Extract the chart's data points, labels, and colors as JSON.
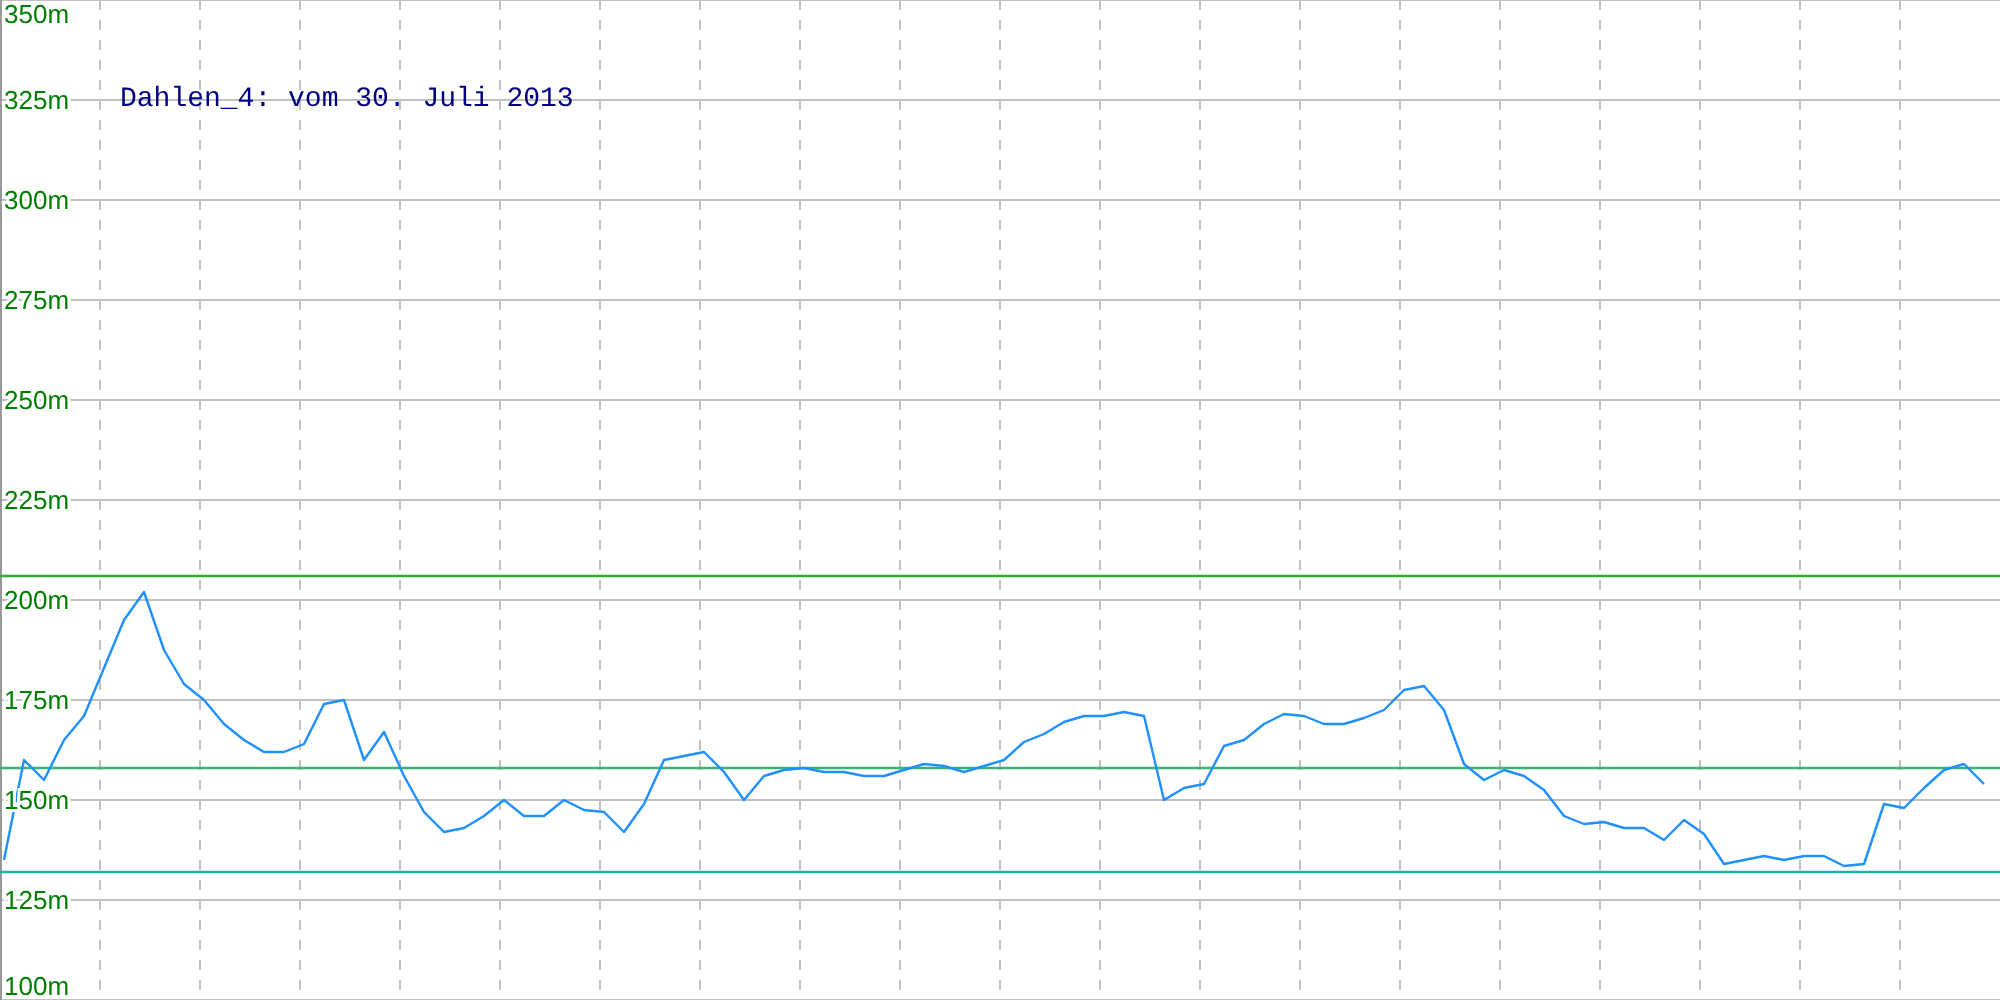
{
  "chart_data": {
    "type": "line",
    "title": "Dahlen_4: vom 30. Juli 2013",
    "categories": [
      null,
      null,
      null,
      null,
      null,
      null,
      null,
      null,
      null,
      null,
      null,
      null,
      null,
      null,
      null,
      null,
      null,
      null,
      null,
      null,
      null,
      null,
      null,
      null,
      null,
      null,
      null,
      null,
      null,
      null,
      null,
      null,
      null,
      null,
      null,
      null,
      null,
      null,
      null,
      null,
      null,
      null,
      null,
      null,
      null,
      null,
      null,
      null,
      null,
      null,
      null,
      null,
      null,
      null,
      null,
      null,
      null,
      null,
      null,
      null,
      null,
      null,
      null,
      null,
      null,
      null,
      null,
      null,
      null,
      null,
      null,
      null,
      null,
      null,
      null,
      null,
      null,
      null,
      null,
      null,
      null,
      null,
      null,
      null,
      null,
      null,
      null,
      null,
      null,
      null,
      null,
      null,
      null,
      null,
      null,
      null,
      null,
      null,
      null,
      null
    ],
    "series": [
      {
        "color": "#1e90ff",
        "values": [
          135,
          160,
          155,
          165,
          171,
          183,
          195,
          202,
          187.5,
          179,
          175,
          169,
          165,
          162,
          162,
          164,
          174,
          175,
          160,
          167,
          156,
          147,
          142,
          143,
          146,
          150,
          146,
          146,
          150,
          147.5,
          147,
          142,
          149,
          160,
          161,
          162,
          157,
          150,
          156,
          157.5,
          158,
          157,
          157,
          156,
          156,
          157.5,
          159,
          158.5,
          157,
          158.5,
          160,
          164.5,
          166.5,
          169.5,
          171,
          171,
          172,
          171,
          150,
          153,
          154,
          163.5,
          165,
          169,
          171.5,
          171,
          169,
          169,
          170.5,
          172.5,
          177.5,
          178.5,
          172.5,
          159,
          155,
          157.5,
          156,
          152.5,
          146,
          144,
          144.5,
          143,
          143,
          140,
          145,
          141.5,
          134,
          135,
          136,
          135,
          136,
          136,
          133.5,
          134,
          149,
          148,
          153,
          157.5,
          159,
          154
        ]
      }
    ],
    "ylim": [
      100,
      350
    ],
    "yticks": [
      {
        "value": 100,
        "label": "100m"
      },
      {
        "value": 125,
        "label": "125m"
      },
      {
        "value": 150,
        "label": "150m"
      },
      {
        "value": 175,
        "label": "175m"
      },
      {
        "value": 200,
        "label": "200m"
      },
      {
        "value": 225,
        "label": "225m"
      },
      {
        "value": 250,
        "label": "250m"
      },
      {
        "value": 275,
        "label": "275m"
      },
      {
        "value": 300,
        "label": "300m"
      },
      {
        "value": 325,
        "label": "325m"
      },
      {
        "value": 350,
        "label": "350m"
      }
    ],
    "grid": true,
    "ref_lines": [
      {
        "axis": "y",
        "value": 206,
        "color": "#33aa33"
      },
      {
        "axis": "y",
        "value": 158,
        "color": "#3cb371"
      },
      {
        "axis": "y",
        "value": 132,
        "color": "#20b2aa"
      }
    ]
  }
}
